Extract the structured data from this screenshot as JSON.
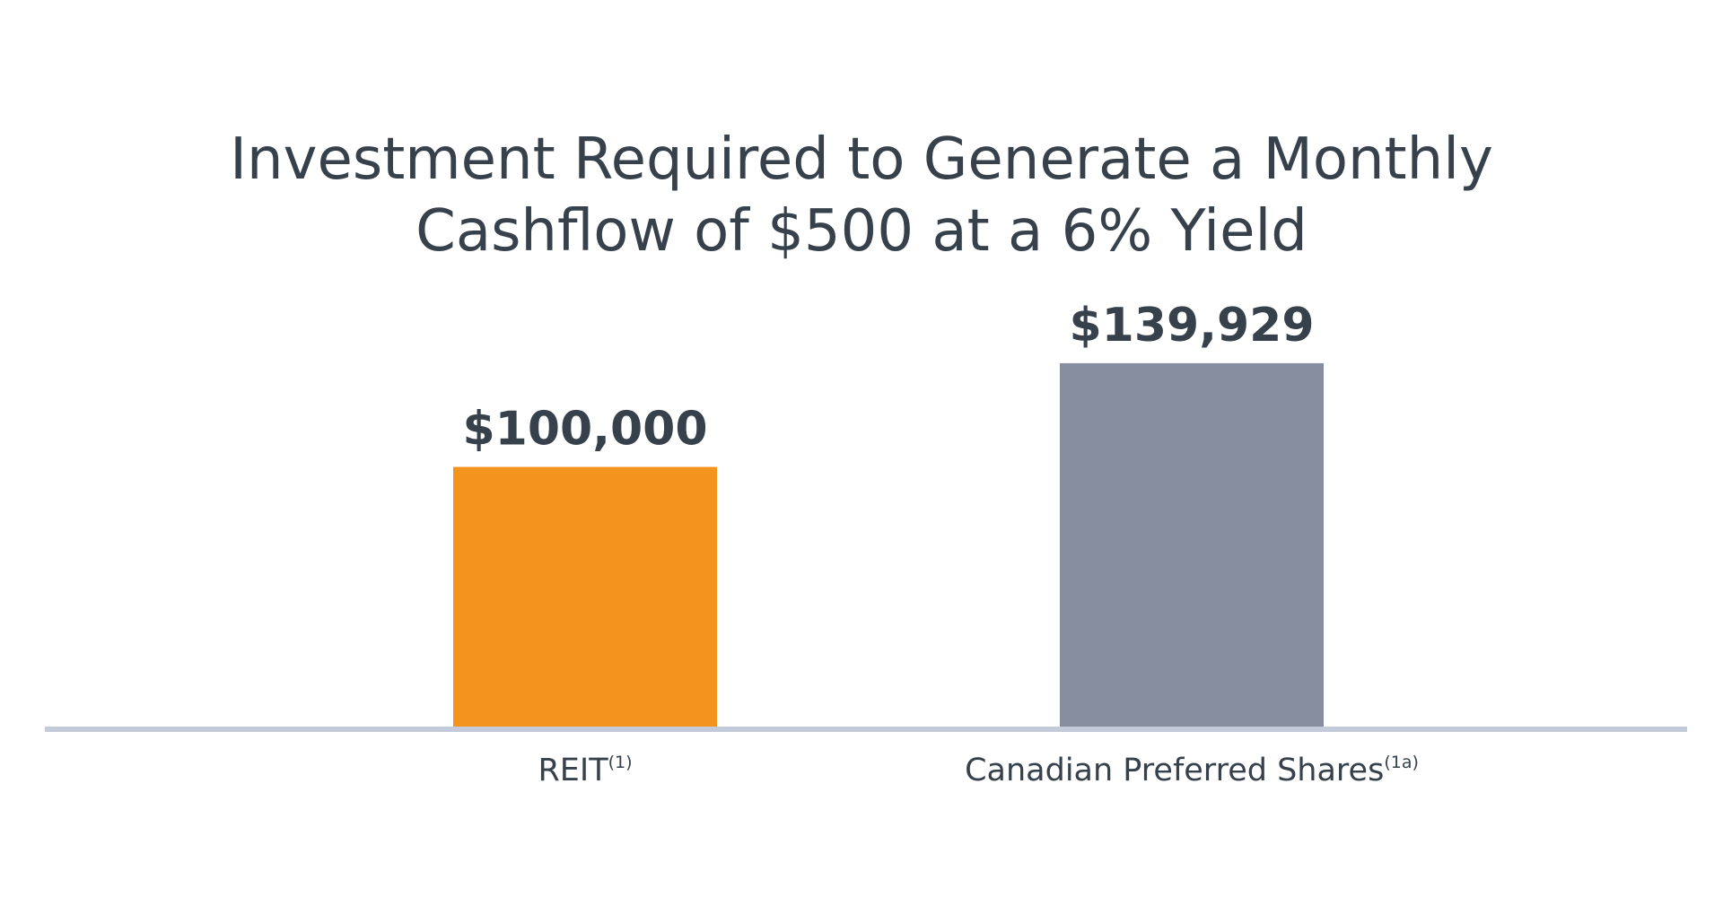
{
  "chart_data": {
    "type": "bar",
    "title_lines": [
      "Investment Required to Generate a Monthly",
      "Cashflow of $500 at a 6% Yield"
    ],
    "categories": [
      {
        "label": "REIT",
        "superscript": "(1)"
      },
      {
        "label": "Canadian Preferred Shares",
        "superscript": "(1a)"
      }
    ],
    "values": [
      100000,
      139929
    ],
    "value_labels": [
      "$100,000",
      "$139,929"
    ],
    "colors": [
      "#f5931f",
      "#858d9f"
    ],
    "baseline_color": "#c3cbdb",
    "xlabel": "",
    "ylabel": "",
    "ylim": [
      0,
      190000
    ],
    "grid": false,
    "legend": "none"
  }
}
